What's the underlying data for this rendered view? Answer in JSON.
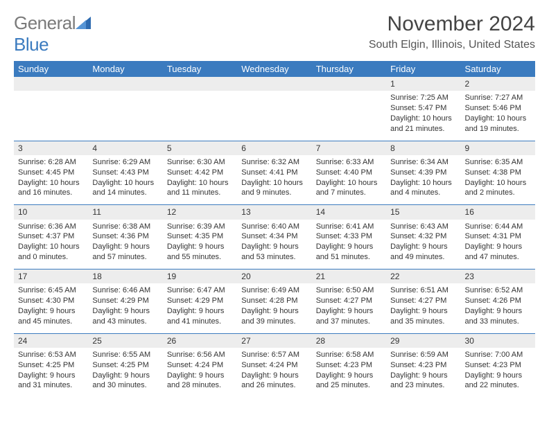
{
  "logo": {
    "text_gray": "General",
    "text_blue": "Blue"
  },
  "header": {
    "month_title": "November 2024",
    "location": "South Elgin, Illinois, United States"
  },
  "colors": {
    "brand_blue": "#3b7bbf",
    "gray_text": "#7a7a7a",
    "header_row": "#ededed"
  },
  "dayNames": [
    "Sunday",
    "Monday",
    "Tuesday",
    "Wednesday",
    "Thursday",
    "Friday",
    "Saturday"
  ],
  "weeks": [
    [
      null,
      null,
      null,
      null,
      null,
      {
        "num": "1",
        "sunrise": "Sunrise: 7:25 AM",
        "sunset": "Sunset: 5:47 PM",
        "day1": "Daylight: 10 hours",
        "day2": "and 21 minutes."
      },
      {
        "num": "2",
        "sunrise": "Sunrise: 7:27 AM",
        "sunset": "Sunset: 5:46 PM",
        "day1": "Daylight: 10 hours",
        "day2": "and 19 minutes."
      }
    ],
    [
      {
        "num": "3",
        "sunrise": "Sunrise: 6:28 AM",
        "sunset": "Sunset: 4:45 PM",
        "day1": "Daylight: 10 hours",
        "day2": "and 16 minutes."
      },
      {
        "num": "4",
        "sunrise": "Sunrise: 6:29 AM",
        "sunset": "Sunset: 4:43 PM",
        "day1": "Daylight: 10 hours",
        "day2": "and 14 minutes."
      },
      {
        "num": "5",
        "sunrise": "Sunrise: 6:30 AM",
        "sunset": "Sunset: 4:42 PM",
        "day1": "Daylight: 10 hours",
        "day2": "and 11 minutes."
      },
      {
        "num": "6",
        "sunrise": "Sunrise: 6:32 AM",
        "sunset": "Sunset: 4:41 PM",
        "day1": "Daylight: 10 hours",
        "day2": "and 9 minutes."
      },
      {
        "num": "7",
        "sunrise": "Sunrise: 6:33 AM",
        "sunset": "Sunset: 4:40 PM",
        "day1": "Daylight: 10 hours",
        "day2": "and 7 minutes."
      },
      {
        "num": "8",
        "sunrise": "Sunrise: 6:34 AM",
        "sunset": "Sunset: 4:39 PM",
        "day1": "Daylight: 10 hours",
        "day2": "and 4 minutes."
      },
      {
        "num": "9",
        "sunrise": "Sunrise: 6:35 AM",
        "sunset": "Sunset: 4:38 PM",
        "day1": "Daylight: 10 hours",
        "day2": "and 2 minutes."
      }
    ],
    [
      {
        "num": "10",
        "sunrise": "Sunrise: 6:36 AM",
        "sunset": "Sunset: 4:37 PM",
        "day1": "Daylight: 10 hours",
        "day2": "and 0 minutes."
      },
      {
        "num": "11",
        "sunrise": "Sunrise: 6:38 AM",
        "sunset": "Sunset: 4:36 PM",
        "day1": "Daylight: 9 hours",
        "day2": "and 57 minutes."
      },
      {
        "num": "12",
        "sunrise": "Sunrise: 6:39 AM",
        "sunset": "Sunset: 4:35 PM",
        "day1": "Daylight: 9 hours",
        "day2": "and 55 minutes."
      },
      {
        "num": "13",
        "sunrise": "Sunrise: 6:40 AM",
        "sunset": "Sunset: 4:34 PM",
        "day1": "Daylight: 9 hours",
        "day2": "and 53 minutes."
      },
      {
        "num": "14",
        "sunrise": "Sunrise: 6:41 AM",
        "sunset": "Sunset: 4:33 PM",
        "day1": "Daylight: 9 hours",
        "day2": "and 51 minutes."
      },
      {
        "num": "15",
        "sunrise": "Sunrise: 6:43 AM",
        "sunset": "Sunset: 4:32 PM",
        "day1": "Daylight: 9 hours",
        "day2": "and 49 minutes."
      },
      {
        "num": "16",
        "sunrise": "Sunrise: 6:44 AM",
        "sunset": "Sunset: 4:31 PM",
        "day1": "Daylight: 9 hours",
        "day2": "and 47 minutes."
      }
    ],
    [
      {
        "num": "17",
        "sunrise": "Sunrise: 6:45 AM",
        "sunset": "Sunset: 4:30 PM",
        "day1": "Daylight: 9 hours",
        "day2": "and 45 minutes."
      },
      {
        "num": "18",
        "sunrise": "Sunrise: 6:46 AM",
        "sunset": "Sunset: 4:29 PM",
        "day1": "Daylight: 9 hours",
        "day2": "and 43 minutes."
      },
      {
        "num": "19",
        "sunrise": "Sunrise: 6:47 AM",
        "sunset": "Sunset: 4:29 PM",
        "day1": "Daylight: 9 hours",
        "day2": "and 41 minutes."
      },
      {
        "num": "20",
        "sunrise": "Sunrise: 6:49 AM",
        "sunset": "Sunset: 4:28 PM",
        "day1": "Daylight: 9 hours",
        "day2": "and 39 minutes."
      },
      {
        "num": "21",
        "sunrise": "Sunrise: 6:50 AM",
        "sunset": "Sunset: 4:27 PM",
        "day1": "Daylight: 9 hours",
        "day2": "and 37 minutes."
      },
      {
        "num": "22",
        "sunrise": "Sunrise: 6:51 AM",
        "sunset": "Sunset: 4:27 PM",
        "day1": "Daylight: 9 hours",
        "day2": "and 35 minutes."
      },
      {
        "num": "23",
        "sunrise": "Sunrise: 6:52 AM",
        "sunset": "Sunset: 4:26 PM",
        "day1": "Daylight: 9 hours",
        "day2": "and 33 minutes."
      }
    ],
    [
      {
        "num": "24",
        "sunrise": "Sunrise: 6:53 AM",
        "sunset": "Sunset: 4:25 PM",
        "day1": "Daylight: 9 hours",
        "day2": "and 31 minutes."
      },
      {
        "num": "25",
        "sunrise": "Sunrise: 6:55 AM",
        "sunset": "Sunset: 4:25 PM",
        "day1": "Daylight: 9 hours",
        "day2": "and 30 minutes."
      },
      {
        "num": "26",
        "sunrise": "Sunrise: 6:56 AM",
        "sunset": "Sunset: 4:24 PM",
        "day1": "Daylight: 9 hours",
        "day2": "and 28 minutes."
      },
      {
        "num": "27",
        "sunrise": "Sunrise: 6:57 AM",
        "sunset": "Sunset: 4:24 PM",
        "day1": "Daylight: 9 hours",
        "day2": "and 26 minutes."
      },
      {
        "num": "28",
        "sunrise": "Sunrise: 6:58 AM",
        "sunset": "Sunset: 4:23 PM",
        "day1": "Daylight: 9 hours",
        "day2": "and 25 minutes."
      },
      {
        "num": "29",
        "sunrise": "Sunrise: 6:59 AM",
        "sunset": "Sunset: 4:23 PM",
        "day1": "Daylight: 9 hours",
        "day2": "and 23 minutes."
      },
      {
        "num": "30",
        "sunrise": "Sunrise: 7:00 AM",
        "sunset": "Sunset: 4:23 PM",
        "day1": "Daylight: 9 hours",
        "day2": "and 22 minutes."
      }
    ]
  ]
}
